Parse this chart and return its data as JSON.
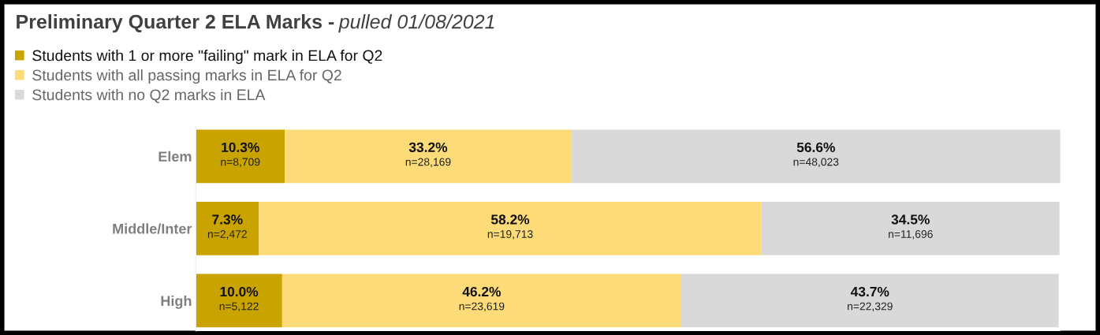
{
  "chart_data": {
    "type": "bar",
    "orientation": "horizontal",
    "stacked": true,
    "title": "Preliminary Quarter 2 ELA Marks -",
    "subtitle": "pulled 01/08/2021",
    "categories": [
      "Elem",
      "Middle/Inter",
      "High"
    ],
    "xlim": [
      0,
      100.1
    ],
    "tick_labels": "y",
    "legend": "top left",
    "grid": false,
    "series": [
      {
        "name": "Students with 1 or more \"failing\" mark in ELA for Q2",
        "color": "#c9a300",
        "values": [
          10.3,
          7.3,
          10.0
        ],
        "value_labels": [
          "10.3%\nn=8,709",
          "7.3%\nn=2,472",
          "10.0%\nn=5,122"
        ]
      },
      {
        "name": "Students with all passing marks in ELA for Q2",
        "color": "#fcdb78",
        "values": [
          33.2,
          58.2,
          46.2
        ],
        "value_labels": [
          "33.2%\nn=28,169",
          "58.2%\nn=19,713",
          "46.2%\nn=23,619"
        ]
      },
      {
        "name": "Students with no Q2 marks in ELA",
        "color": "#d9d9d9",
        "values": [
          56.6,
          34.5,
          43.7
        ],
        "value_labels": [
          "56.6%\nn=48,023",
          "34.5%\nn=11,696",
          "43.7%\nn=22,329"
        ]
      }
    ]
  }
}
